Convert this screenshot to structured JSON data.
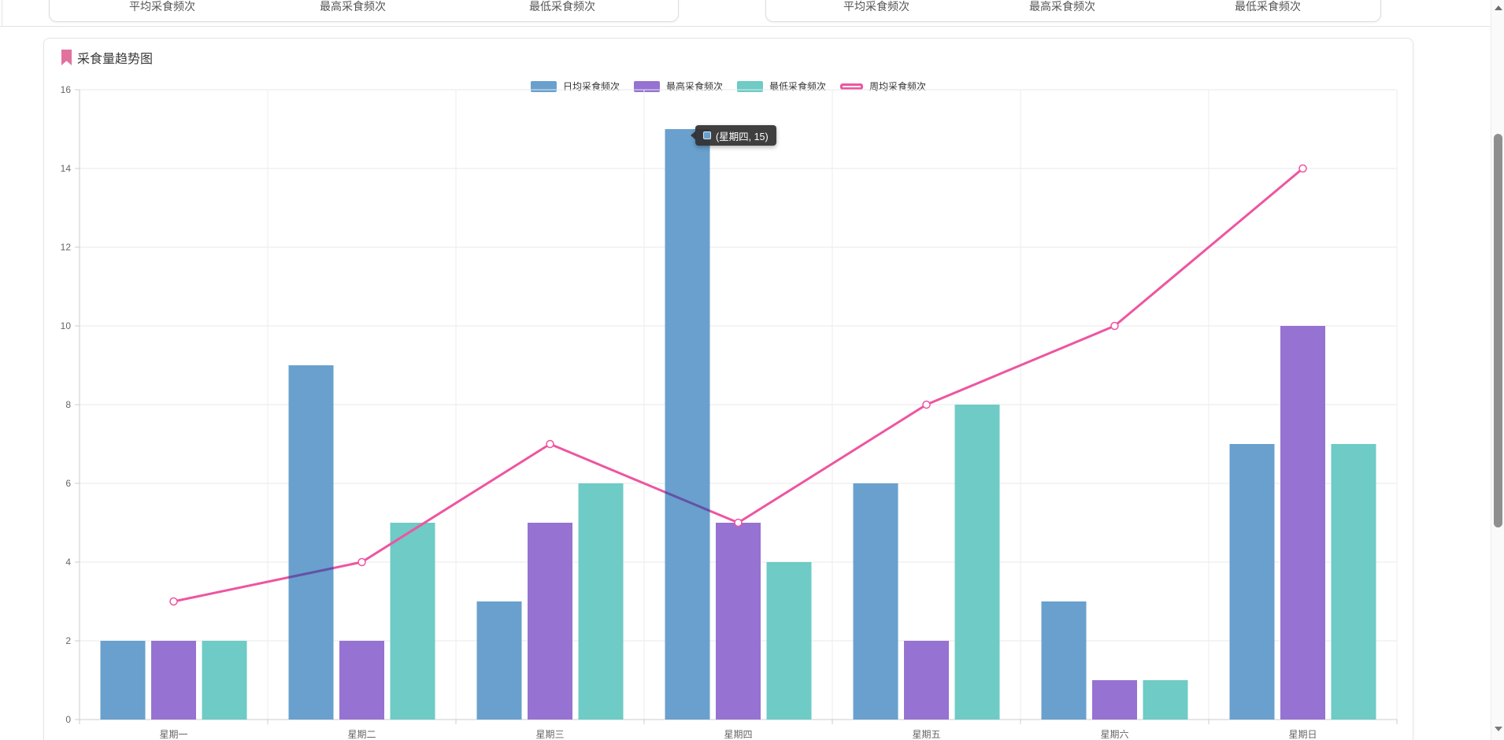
{
  "page": {
    "top_cards": [
      {
        "labels": [
          "平均采食频次",
          "最高采食频次",
          "最低采食频次"
        ]
      },
      {
        "labels": [
          "平均采食频次",
          "最高采食频次",
          "最低采食频次"
        ]
      }
    ],
    "panel": {
      "title": "采食量趋势图"
    },
    "tooltip": {
      "series": "日均采食频次",
      "category": "星期四",
      "value": 15,
      "text": "(星期四, 15)"
    },
    "colors": {
      "bar_blue": "#69A0CD",
      "bar_purple": "#9672D2",
      "bar_teal": "#6ECBC5",
      "line_pink": "#EE55A0",
      "line_over_blue_blend": "#5d55a8",
      "grid": "#e9e9e9",
      "axis": "#cccccc",
      "axis_label": "#666666",
      "title_accent": "#e2719d",
      "tooltip_bg": "rgba(48,48,48,0.93)"
    }
  },
  "chart_data": {
    "type": "bar",
    "title": "采食量趋势图",
    "categories": [
      "星期一",
      "星期二",
      "星期三",
      "星期四",
      "星期五",
      "星期六",
      "星期日"
    ],
    "series": [
      {
        "name": "日均采食频次",
        "type": "bar",
        "color": "#69A0CD",
        "values": [
          2,
          9,
          3,
          15,
          6,
          3,
          7
        ]
      },
      {
        "name": "最高采食频次",
        "type": "bar",
        "color": "#9672D2",
        "values": [
          2,
          2,
          5,
          5,
          2,
          1,
          10
        ]
      },
      {
        "name": "最低采食频次",
        "type": "bar",
        "color": "#6ECBC5",
        "values": [
          2,
          5,
          6,
          4,
          8,
          1,
          7
        ]
      },
      {
        "name": "周均采食频次",
        "type": "line",
        "color": "#EE55A0",
        "values": [
          3,
          4,
          7,
          5,
          8,
          10,
          14
        ]
      }
    ],
    "xlabel": "",
    "ylabel": "",
    "ylim": [
      0,
      16
    ],
    "yticks": [
      0,
      2,
      4,
      6,
      8,
      10,
      12,
      14,
      16
    ],
    "grid": true,
    "legend_position": "top",
    "tooltip_point": {
      "series": "日均采食频次",
      "category": "星期四",
      "value": 15
    }
  }
}
